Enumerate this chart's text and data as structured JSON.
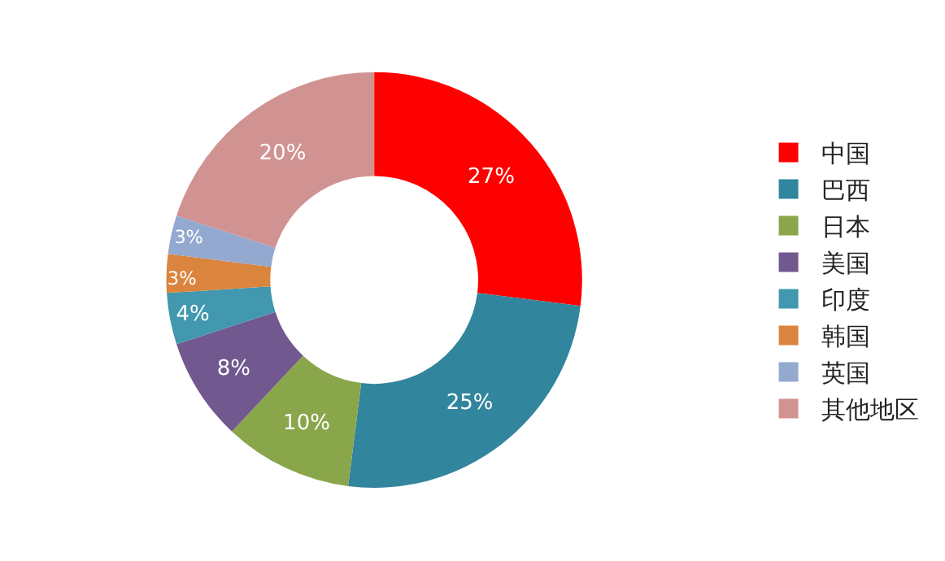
{
  "chart_data": {
    "type": "donut",
    "categories": [
      "中国",
      "巴西",
      "日本",
      "美国",
      "印度",
      "韩国",
      "英国",
      "其他地区"
    ],
    "values": [
      27,
      25,
      10,
      8,
      4,
      3,
      3,
      20
    ],
    "value_labels": [
      "27%",
      "25%",
      "10%",
      "8%",
      "4%",
      "3%",
      "3%",
      "20%"
    ],
    "colors": [
      "#ff0000",
      "#31859c",
      "#8aa64a",
      "#71588f",
      "#4198af",
      "#db843d",
      "#93a9cf",
      "#d09392"
    ],
    "legend": "right"
  }
}
